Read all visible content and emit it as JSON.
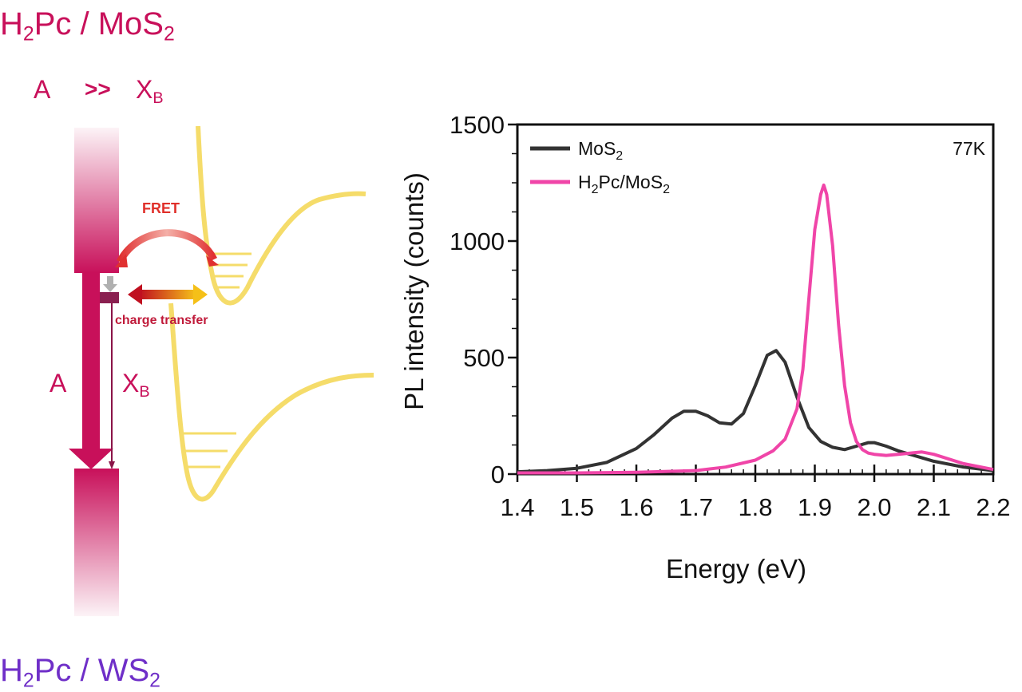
{
  "left_panel": {
    "title_top": {
      "base": "H",
      "sub1": "2",
      "mid": "Pc / MoS",
      "sub2": "2"
    },
    "title_bottom": {
      "base": "H",
      "sub1": "2",
      "mid": "Pc / WS",
      "sub2": "2"
    },
    "top_labels": {
      "a": "A",
      "rel": ">>",
      "x": "X",
      "x_sub": "B"
    },
    "side_labels": {
      "a": "A",
      "x": "X",
      "x_sub": "B"
    },
    "fret_label": "FRET",
    "charge_transfer_label": "charge transfer",
    "colors": {
      "donor_bar": "#c8105a",
      "acceptor_curve": "#f5dc6a",
      "title_bottom": "#6f2fc8"
    }
  },
  "chart_data": {
    "type": "line",
    "xlabel": "Energy (eV)",
    "ylabel": "PL intensity (counts)",
    "xlim": [
      1.4,
      2.2
    ],
    "ylim": [
      0,
      1500
    ],
    "x_ticks": [
      "1.4",
      "1.5",
      "1.6",
      "1.7",
      "1.8",
      "1.9",
      "2.0",
      "2.1",
      "2.2"
    ],
    "y_ticks": [
      "0",
      "500",
      "1000",
      "1500"
    ],
    "annotation": "77K",
    "legend_position": "top-left",
    "series": [
      {
        "name": "MoS",
        "name_sub": "2",
        "color": "#333333",
        "x": [
          1.4,
          1.45,
          1.5,
          1.55,
          1.6,
          1.63,
          1.66,
          1.68,
          1.7,
          1.72,
          1.74,
          1.76,
          1.78,
          1.8,
          1.82,
          1.835,
          1.85,
          1.87,
          1.89,
          1.91,
          1.93,
          1.95,
          1.97,
          1.99,
          2.0,
          2.02,
          2.04,
          2.06,
          2.08,
          2.1,
          2.15,
          2.2
        ],
        "y": [
          10,
          15,
          25,
          50,
          110,
          170,
          240,
          270,
          270,
          250,
          220,
          215,
          260,
          380,
          510,
          530,
          480,
          330,
          200,
          140,
          115,
          105,
          120,
          135,
          135,
          120,
          100,
          85,
          70,
          55,
          30,
          15
        ]
      },
      {
        "name": "H",
        "name_sub": "2",
        "name_rest": "Pc/MoS",
        "name_sub2": "2",
        "color": "#f045a8",
        "x": [
          1.4,
          1.5,
          1.6,
          1.7,
          1.75,
          1.8,
          1.83,
          1.85,
          1.87,
          1.88,
          1.89,
          1.9,
          1.91,
          1.915,
          1.92,
          1.93,
          1.94,
          1.95,
          1.96,
          1.97,
          1.98,
          1.99,
          2.0,
          2.02,
          2.04,
          2.06,
          2.08,
          2.1,
          2.15,
          2.2
        ],
        "y": [
          5,
          5,
          8,
          15,
          30,
          60,
          100,
          150,
          280,
          450,
          750,
          1050,
          1200,
          1240,
          1200,
          980,
          640,
          380,
          220,
          140,
          105,
          90,
          85,
          80,
          85,
          90,
          95,
          85,
          45,
          20
        ]
      }
    ]
  }
}
